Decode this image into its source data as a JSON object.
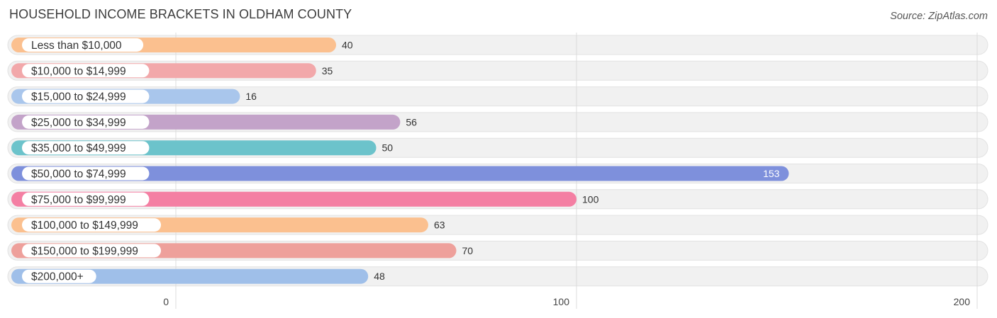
{
  "header": {
    "title": "HOUSEHOLD INCOME BRACKETS IN OLDHAM COUNTY",
    "source": "Source: ZipAtlas.com"
  },
  "chart_data": {
    "type": "bar",
    "orientation": "horizontal",
    "title": "HOUSEHOLD INCOME BRACKETS IN OLDHAM COUNTY",
    "xlabel": "",
    "ylabel": "",
    "xlim": [
      0,
      200
    ],
    "x_ticks": [
      0,
      100,
      200
    ],
    "grid": true,
    "legend": "none",
    "categories": [
      "Less than $10,000",
      "$10,000 to $14,999",
      "$15,000 to $24,999",
      "$25,000 to $34,999",
      "$35,000 to $49,999",
      "$50,000 to $74,999",
      "$75,000 to $99,999",
      "$100,000 to $149,999",
      "$150,000 to $199,999",
      "$200,000+"
    ],
    "values": [
      40,
      35,
      16,
      56,
      50,
      153,
      100,
      63,
      70,
      48
    ],
    "colors": [
      "#fbc08f",
      "#f2a8aa",
      "#a9c6ec",
      "#c3a3c9",
      "#6cc3cb",
      "#7e90dc",
      "#f47fa3",
      "#fbc08f",
      "#eea09b",
      "#9fbfe9"
    ]
  }
}
